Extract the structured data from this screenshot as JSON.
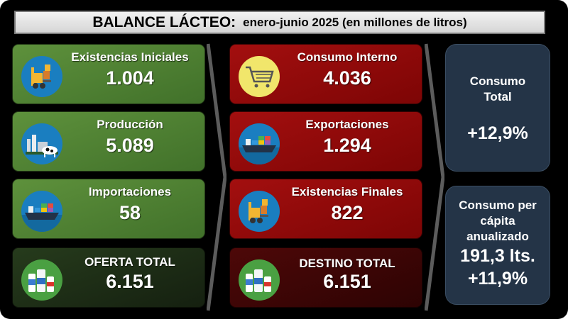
{
  "title": {
    "main": "BALANCE LÁCTEO:",
    "sub": "enero-junio 2025 (en millones de litros)"
  },
  "oferta": [
    {
      "label": "Existencias Iniciales",
      "value": "1.004",
      "icon": "forklift-icon"
    },
    {
      "label": "Producción",
      "value": "5.089",
      "icon": "dairy-farm-icon"
    },
    {
      "label": "Importaciones",
      "value": "58",
      "icon": "cargo-ship-icon"
    },
    {
      "label": "OFERTA TOTAL",
      "value": "6.151",
      "icon": "dairy-products-icon"
    }
  ],
  "destino": [
    {
      "label": "Consumo Interno",
      "value": "4.036",
      "icon": "shopping-cart-icon"
    },
    {
      "label": "Exportaciones",
      "value": "1.294",
      "icon": "cargo-ship-icon"
    },
    {
      "label": "Existencias Finales",
      "value": "822",
      "icon": "forklift-icon"
    },
    {
      "label": "DESTINO TOTAL",
      "value": "6.151",
      "icon": "dairy-products-icon"
    }
  ],
  "consumo_total": {
    "title_line1": "Consumo",
    "title_line2": "Total",
    "value": "+12,9%"
  },
  "per_capita": {
    "title_line1": "Consumo per",
    "title_line2": "cápita",
    "title_line3": "anualizado",
    "value": "191,3 lts.",
    "change": "+11,9%"
  },
  "colors": {
    "oferta_card": "#4f8233",
    "oferta_total_card": "#1f3117",
    "destino_card": "#940b0b",
    "destino_total_card": "#3e0606",
    "summary_card": "#243447",
    "title_bar": "#e3e3e3"
  }
}
